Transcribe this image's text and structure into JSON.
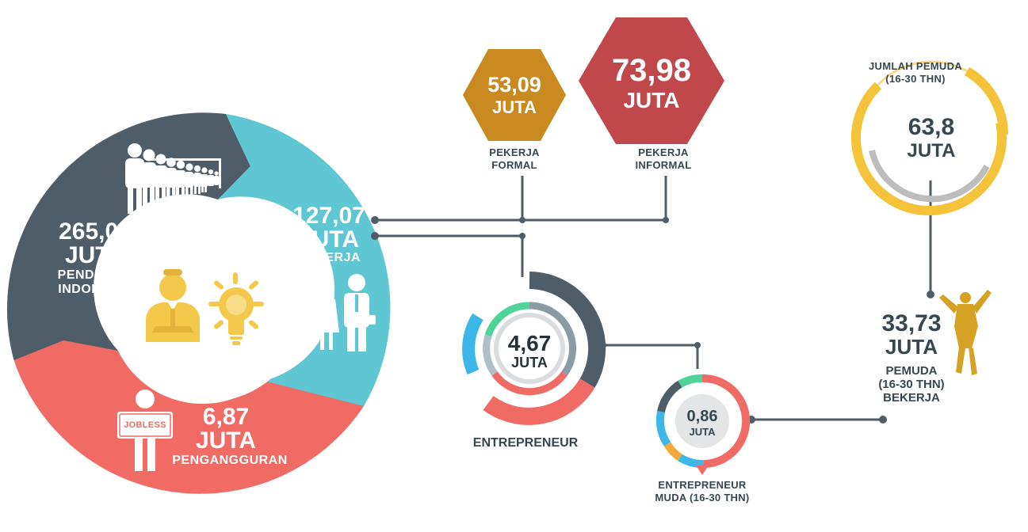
{
  "colors": {
    "slate": "#4e5d68",
    "cyan": "#5fc6d4",
    "coral": "#ef6b63",
    "gold": "#c98a22",
    "red": "#c0484a",
    "yellow": "#f4c33a",
    "line": "#4e5d68",
    "green": "#4fd39b",
    "blue": "#3db7e8",
    "orange": "#f2a93b"
  },
  "icons": [
    "people-queue-icon",
    "businessman-icon",
    "lightbulb-icon",
    "business-couple-icon",
    "jobless-person-icon",
    "cheering-youth-icon"
  ],
  "population": {
    "value": "265,05",
    "unit": "JUTA",
    "label_line1": "PENDUDUK",
    "label_line2": "INDONESIA"
  },
  "employed": {
    "value": "127,07",
    "unit": "JUTA",
    "label": "BEKERJA"
  },
  "unemployed": {
    "value": "6,87",
    "unit": "JUTA",
    "label": "PENGANGGURAN",
    "sign": "JOBLESS"
  },
  "formal": {
    "value": "53,09",
    "unit": "JUTA",
    "label_line1": "PEKERJA",
    "label_line2": "FORMAL"
  },
  "informal": {
    "value": "73,98",
    "unit": "JUTA",
    "label_line1": "PEKERJA",
    "label_line2": "INFORMAL"
  },
  "entrepreneur": {
    "value": "4,67",
    "unit": "JUTA",
    "label": "ENTREPRENEUR"
  },
  "young_entrepreneur": {
    "value": "0,86",
    "unit": "JUTA",
    "label_line1": "ENTREPRENEUR",
    "label_line2": "MUDA (16-30 THN)"
  },
  "youth_total": {
    "value": "63,8",
    "unit": "JUTA",
    "label_line1": "JUMLAH PEMUDA",
    "label_line2": "(16-30 THN)"
  },
  "youth_working": {
    "value": "33,73",
    "unit": "JUTA",
    "label_line1": "PEMUDA",
    "label_line2": "(16-30 THN)",
    "label_line3": "BEKERJA"
  }
}
